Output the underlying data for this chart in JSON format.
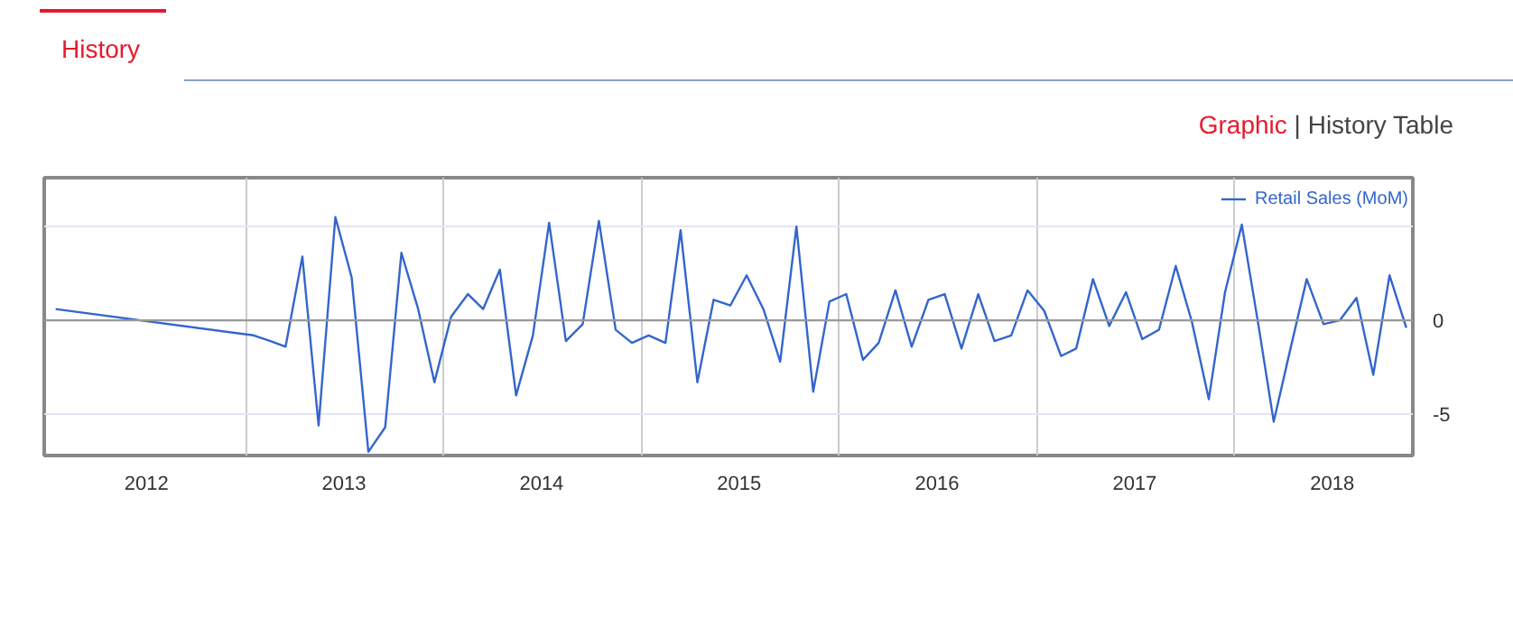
{
  "chart_data": {
    "type": "line",
    "title": "History",
    "annotations": [
      "Graphic",
      "|",
      "History Table"
    ],
    "x": [
      "2012-01-15",
      "2013-01-15",
      "2013-02-15",
      "2013-03-15",
      "2013-04-15",
      "2013-05-15",
      "2013-06-15",
      "2013-07-15",
      "2013-08-15",
      "2013-09-15",
      "2013-10-15",
      "2013-11-15",
      "2013-12-15",
      "2014-01-15",
      "2014-02-15",
      "2014-03-15",
      "2014-04-15",
      "2014-05-15",
      "2014-06-15",
      "2014-07-15",
      "2014-08-15",
      "2014-09-15",
      "2014-10-15",
      "2014-11-15",
      "2014-12-15",
      "2015-01-15",
      "2015-02-15",
      "2015-03-15",
      "2015-04-15",
      "2015-05-15",
      "2015-06-15",
      "2015-07-15",
      "2015-08-15",
      "2015-09-15",
      "2015-10-15",
      "2015-11-15",
      "2015-12-15",
      "2016-01-15",
      "2016-02-15",
      "2016-03-15",
      "2016-04-15",
      "2016-05-15",
      "2016-06-15",
      "2016-07-15",
      "2016-08-15",
      "2016-09-15",
      "2016-10-15",
      "2016-11-15",
      "2016-12-15",
      "2017-01-15",
      "2017-02-15",
      "2017-03-15",
      "2017-04-15",
      "2017-05-15",
      "2017-06-15",
      "2017-07-15",
      "2017-08-15",
      "2017-09-15",
      "2017-10-15",
      "2017-11-15",
      "2017-12-15",
      "2018-01-15",
      "2018-02-15",
      "2018-03-15",
      "2018-04-15",
      "2018-05-15",
      "2018-06-15",
      "2018-07-15",
      "2018-08-15",
      "2018-09-15",
      "2018-10-15",
      "2018-11-15"
    ],
    "series": [
      {
        "name": "Retail Sales (MoM)",
        "color": "#3366cc",
        "values": [
          0.6,
          -0.8,
          -1.1,
          -1.4,
          3.4,
          -5.6,
          5.5,
          2.3,
          -7.0,
          -5.7,
          3.6,
          0.6,
          -3.3,
          0.2,
          1.4,
          0.6,
          2.7,
          -4.0,
          -0.8,
          5.2,
          -1.1,
          -0.2,
          5.3,
          -0.5,
          -1.2,
          -0.8,
          -1.2,
          4.8,
          -3.3,
          1.1,
          0.8,
          2.4,
          0.6,
          -2.2,
          5.0,
          -3.8,
          1.0,
          1.4,
          -2.1,
          -1.2,
          1.6,
          -1.4,
          1.1,
          1.4,
          -1.5,
          1.4,
          -1.1,
          -0.8,
          1.6,
          0.5,
          -1.9,
          -1.5,
          2.2,
          -0.3,
          1.5,
          -1.0,
          -0.5,
          2.9,
          -0.1,
          -4.2,
          1.5,
          5.1,
          -0.3,
          -5.4,
          -1.5,
          2.2,
          -0.2,
          0.0,
          1.2,
          -2.9,
          2.4,
          -0.4
        ]
      }
    ],
    "xlim": [
      "2011-12-25",
      "2018-11-27"
    ],
    "xticks": [
      {
        "value": "2012-07-01",
        "label": "2012"
      },
      {
        "value": "2013-01-01",
        "label": null
      },
      {
        "value": "2013-07-01",
        "label": "2013"
      },
      {
        "value": "2014-01-01",
        "label": null
      },
      {
        "value": "2014-07-01",
        "label": "2014"
      },
      {
        "value": "2015-01-01",
        "label": null
      },
      {
        "value": "2015-07-01",
        "label": "2015"
      },
      {
        "value": "2016-01-01",
        "label": null
      },
      {
        "value": "2016-07-01",
        "label": "2016"
      },
      {
        "value": "2017-01-01",
        "label": null
      },
      {
        "value": "2017-07-01",
        "label": "2017"
      },
      {
        "value": "2018-01-01",
        "label": null
      },
      {
        "value": "2018-07-01",
        "label": "2018"
      }
    ],
    "ylim": [
      -7.2,
      7.6
    ],
    "yticks": [
      {
        "value": 5,
        "label": null
      },
      0,
      -5
    ],
    "ref_lines": [
      {
        "axis": "y",
        "value": 0,
        "color": "#999999"
      }
    ],
    "grid": true,
    "legend": "top right",
    "line_style": "solid",
    "marker": "none"
  }
}
